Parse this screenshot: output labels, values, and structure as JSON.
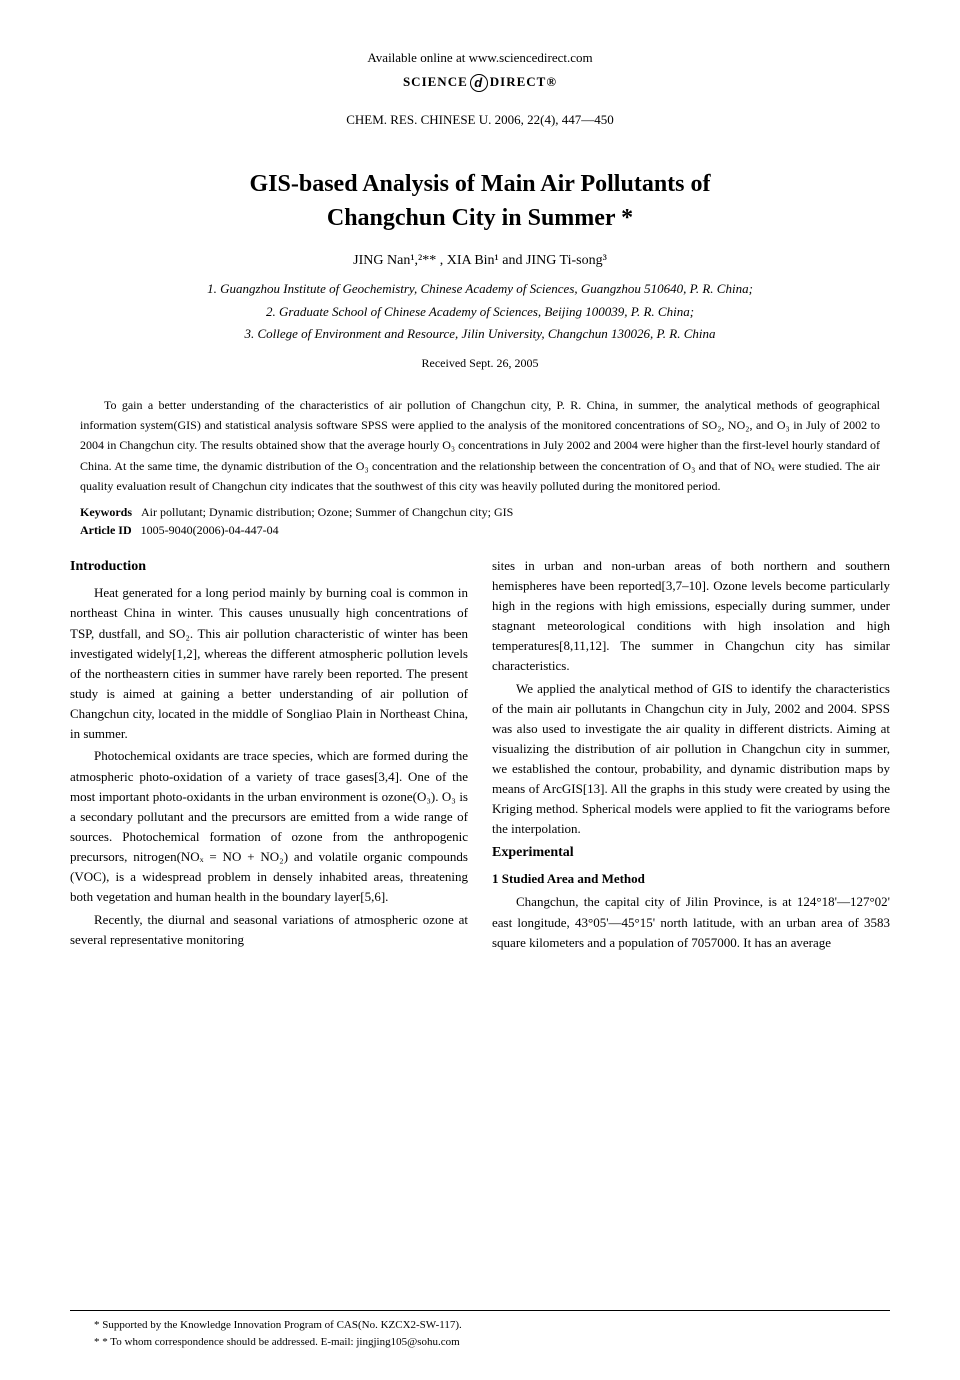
{
  "header": {
    "available_online": "Available online at www.sciencedirect.com",
    "logo_left": "SCIENCE",
    "logo_right": "DIRECT®",
    "journal_citation": "CHEM. RES. CHINESE U. 2006, 22(4), 447—450"
  },
  "title": {
    "line1": "GIS-based Analysis of Main Air Pollutants of",
    "line2": "Changchun City in Summer *"
  },
  "authors_line": "JING Nan¹,²** , XIA Bin¹ and JING Ti-song³",
  "affiliations": {
    "a1": "1. Guangzhou Institute of Geochemistry, Chinese Academy of Sciences, Guangzhou 510640, P. R. China;",
    "a2": "2. Graduate School of Chinese Academy of Sciences, Beijing 100039, P. R. China;",
    "a3": "3. College of Environment and Resource, Jilin University, Changchun 130026, P. R. China"
  },
  "received": "Received Sept. 26, 2005",
  "abstract": "To gain a better understanding of the characteristics of air pollution of Changchun city, P. R. China, in summer, the analytical methods of geographical information system(GIS) and statistical analysis software SPSS were applied to the analysis of the monitored concentrations of SO₂, NO₂, and O₃ in July of 2002 to 2004 in Changchun city. The results obtained show that the average hourly O₃ concentrations in July 2002 and 2004 were higher than the first-level hourly standard of China. At the same time, the dynamic distribution of the O₃ concentration and the relationship between the concentration of O₃ and that of NOₓ were studied. The air quality evaluation result of Changchun city indicates that the southwest of this city was heavily polluted during the monitored period.",
  "keywords": {
    "label": "Keywords",
    "text": "Air pollutant; Dynamic distribution; Ozone; Summer of Changchun city; GIS"
  },
  "article_id": {
    "label": "Article ID",
    "text": "1005-9040(2006)-04-447-04"
  },
  "left_column": {
    "heading": "Introduction",
    "p1": "Heat generated for a long period mainly by burning coal is common in northeast China in winter. This causes unusually high concentrations of TSP, dustfall, and SO₂. This air pollution characteristic of winter has been investigated widely[1,2], whereas the different atmospheric pollution levels of the northeastern cities in summer have rarely been reported. The present study is aimed at gaining a better understanding of air pollution of Changchun city, located in the middle of Songliao Plain in Northeast China, in summer.",
    "p2": "Photochemical oxidants are trace species, which are formed during the atmospheric photo-oxidation of a variety of trace gases[3,4]. One of the most important photo-oxidants in the urban environment is ozone(O₃). O₃ is a secondary pollutant and the precursors are emitted from a wide range of sources. Photochemical formation of ozone from the anthropogenic precursors, nitrogen(NOₓ = NO + NO₂) and volatile organic compounds (VOC), is a widespread problem in densely inhabited areas, threatening both vegetation and human health in the boundary layer[5,6].",
    "p3": "Recently, the diurnal and seasonal variations of atmospheric ozone at several representative monitoring"
  },
  "right_column": {
    "p1": "sites in urban and non-urban areas of both northern and southern hemispheres have been reported[3,7–10]. Ozone levels become particularly high in the regions with high emissions, especially during summer, under stagnant meteorological conditions with high insolation and high temperatures[8,11,12]. The summer in Changchun city has similar characteristics.",
    "p2": "We applied the analytical method of GIS to identify the characteristics of the main air pollutants in Changchun city in July, 2002 and 2004. SPSS was also used to investigate the air quality in different districts. Aiming at visualizing the distribution of air pollution in Changchun city in summer, we established the contour, probability, and dynamic distribution maps by means of ArcGIS[13]. All the graphs in this study were created by using the Kriging method. Spherical models were applied to fit the variograms before the interpolation.",
    "heading2": "Experimental",
    "sub1": "1  Studied Area and Method",
    "p3": "Changchun, the capital city of Jilin Province, is at 124°18'—127°02' east longitude, 43°05'—45°15' north latitude, with an urban area of 3583 square kilometers and a population of 7057000. It has an average"
  },
  "footnotes": {
    "f1": "* Supported by the Knowledge Innovation Program of CAS(No. KZCX2-SW-117).",
    "f2": "* * To whom correspondence should be addressed. E-mail: jingjing105@sohu.com"
  }
}
